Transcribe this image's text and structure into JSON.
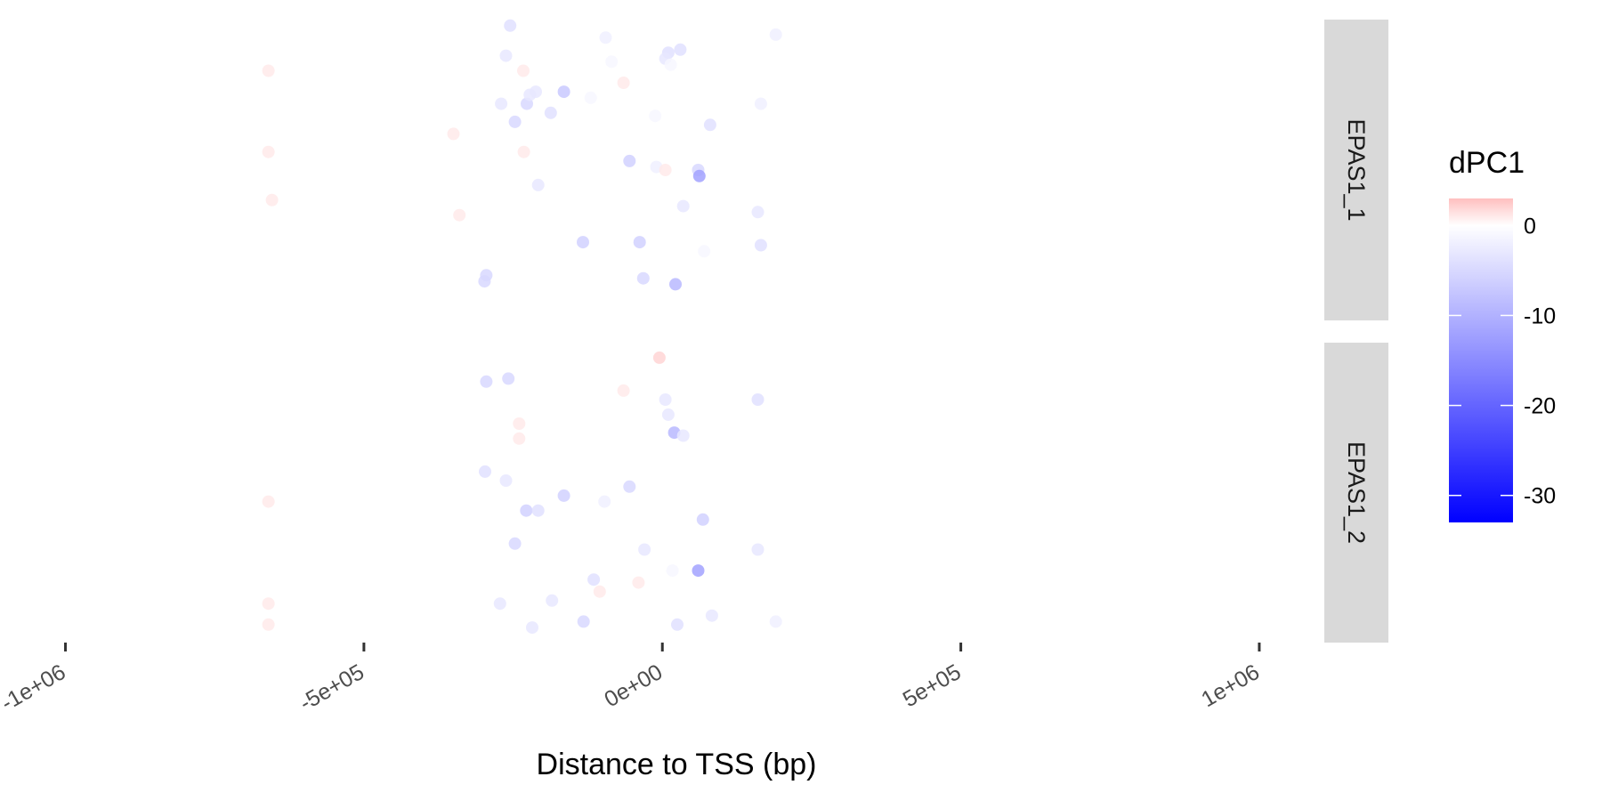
{
  "chart_data": {
    "type": "scatter",
    "xlabel": "Distance to TSS (bp)",
    "ylabel": "",
    "xlim": [
      -1050000,
      1100000
    ],
    "xticks": [
      {
        "value": -1000000,
        "label": "-1e+06"
      },
      {
        "value": -500000,
        "label": "-5e+05"
      },
      {
        "value": 0,
        "label": "0e+00"
      },
      {
        "value": 500000,
        "label": "5e+05"
      },
      {
        "value": 1000000,
        "label": "1e+06"
      }
    ],
    "y_axis_shown": false,
    "grid": false,
    "panels": [
      {
        "name": "EPAS1_1",
        "points": [
          {
            "x": -255000,
            "y": 0.98,
            "value": -4
          },
          {
            "x": -660000,
            "y": 0.83,
            "value": 1
          },
          {
            "x": -262000,
            "y": 0.88,
            "value": -3
          },
          {
            "x": -233000,
            "y": 0.83,
            "value": 1
          },
          {
            "x": -85000,
            "y": 0.86,
            "value": -1
          },
          {
            "x": 10000,
            "y": 0.89,
            "value": -4
          },
          {
            "x": 30000,
            "y": 0.9,
            "value": -4
          },
          {
            "x": 5000,
            "y": 0.87,
            "value": -3
          },
          {
            "x": 14000,
            "y": 0.85,
            "value": -1
          },
          {
            "x": 190000,
            "y": 0.95,
            "value": -2
          },
          {
            "x": -95000,
            "y": 0.94,
            "value": -2
          },
          {
            "x": -227000,
            "y": 0.72,
            "value": -5
          },
          {
            "x": -222000,
            "y": 0.75,
            "value": -3
          },
          {
            "x": -212000,
            "y": 0.76,
            "value": -3
          },
          {
            "x": -165000,
            "y": 0.76,
            "value": -7
          },
          {
            "x": -120000,
            "y": 0.74,
            "value": -1
          },
          {
            "x": -65000,
            "y": 0.79,
            "value": 1
          },
          {
            "x": -187000,
            "y": 0.69,
            "value": -4
          },
          {
            "x": -270000,
            "y": 0.72,
            "value": -3
          },
          {
            "x": -247000,
            "y": 0.66,
            "value": -5
          },
          {
            "x": -360000,
            "y": 0.63,
            "value": 0
          },
          {
            "x": -350000,
            "y": 0.62,
            "value": 1
          },
          {
            "x": -12000,
            "y": 0.68,
            "value": -1
          },
          {
            "x": 80000,
            "y": 0.65,
            "value": -4
          },
          {
            "x": 165000,
            "y": 0.72,
            "value": -2
          },
          {
            "x": -660000,
            "y": 0.56,
            "value": 1
          },
          {
            "x": -232000,
            "y": 0.56,
            "value": 1
          },
          {
            "x": -55000,
            "y": 0.53,
            "value": -6
          },
          {
            "x": -105000,
            "y": 0.52,
            "value": 0
          },
          {
            "x": -10000,
            "y": 0.51,
            "value": -2
          },
          {
            "x": 5000,
            "y": 0.5,
            "value": 1
          },
          {
            "x": 60000,
            "y": 0.5,
            "value": -5
          },
          {
            "x": 62000,
            "y": 0.48,
            "value": -12
          },
          {
            "x": -208000,
            "y": 0.45,
            "value": -3
          },
          {
            "x": -230000,
            "y": 0.43,
            "value": 0
          },
          {
            "x": 35000,
            "y": 0.38,
            "value": -3
          },
          {
            "x": 160000,
            "y": 0.36,
            "value": -3
          },
          {
            "x": -340000,
            "y": 0.35,
            "value": 1
          },
          {
            "x": -133000,
            "y": 0.26,
            "value": -6
          },
          {
            "x": -38000,
            "y": 0.26,
            "value": -6
          },
          {
            "x": 70000,
            "y": 0.23,
            "value": -1
          },
          {
            "x": 165000,
            "y": 0.25,
            "value": -4
          },
          {
            "x": -295000,
            "y": 0.15,
            "value": -5
          },
          {
            "x": -298000,
            "y": 0.13,
            "value": -5
          },
          {
            "x": -32000,
            "y": 0.14,
            "value": -5
          },
          {
            "x": 22000,
            "y": 0.12,
            "value": -9
          },
          {
            "x": -654000,
            "y": 0.4,
            "value": 1
          }
        ]
      },
      {
        "name": "EPAS1_2",
        "points": [
          {
            "x": -5000,
            "y": 0.95,
            "value": 2
          },
          {
            "x": -295000,
            "y": 0.87,
            "value": -5
          },
          {
            "x": -258000,
            "y": 0.88,
            "value": -5
          },
          {
            "x": -65000,
            "y": 0.84,
            "value": 1
          },
          {
            "x": 5000,
            "y": 0.81,
            "value": -3
          },
          {
            "x": 160000,
            "y": 0.81,
            "value": -4
          },
          {
            "x": 10000,
            "y": 0.76,
            "value": -3
          },
          {
            "x": -240000,
            "y": 0.73,
            "value": 1
          },
          {
            "x": 20000,
            "y": 0.7,
            "value": -9
          },
          {
            "x": 35000,
            "y": 0.69,
            "value": -3
          },
          {
            "x": -345000,
            "y": 0.66,
            "value": 0
          },
          {
            "x": -240000,
            "y": 0.68,
            "value": 1
          },
          {
            "x": -297000,
            "y": 0.57,
            "value": -4
          },
          {
            "x": -262000,
            "y": 0.54,
            "value": -3
          },
          {
            "x": -55000,
            "y": 0.52,
            "value": -5
          },
          {
            "x": -165000,
            "y": 0.49,
            "value": -6
          },
          {
            "x": -97000,
            "y": 0.47,
            "value": -2
          },
          {
            "x": -660000,
            "y": 0.47,
            "value": 1
          },
          {
            "x": -228000,
            "y": 0.44,
            "value": -6
          },
          {
            "x": -208000,
            "y": 0.44,
            "value": -4
          },
          {
            "x": 68000,
            "y": 0.41,
            "value": -6
          },
          {
            "x": -247000,
            "y": 0.33,
            "value": -5
          },
          {
            "x": -30000,
            "y": 0.31,
            "value": -3
          },
          {
            "x": 160000,
            "y": 0.31,
            "value": -3
          },
          {
            "x": 60000,
            "y": 0.24,
            "value": -12
          },
          {
            "x": 17000,
            "y": 0.24,
            "value": -1
          },
          {
            "x": -115000,
            "y": 0.21,
            "value": -4
          },
          {
            "x": -40000,
            "y": 0.2,
            "value": 1
          },
          {
            "x": -105000,
            "y": 0.17,
            "value": 1
          },
          {
            "x": -660000,
            "y": 0.13,
            "value": 1
          },
          {
            "x": -272000,
            "y": 0.13,
            "value": -3
          },
          {
            "x": -185000,
            "y": 0.14,
            "value": -3
          },
          {
            "x": -132000,
            "y": 0.07,
            "value": -5
          },
          {
            "x": 83000,
            "y": 0.09,
            "value": -3
          },
          {
            "x": 25000,
            "y": 0.06,
            "value": -4
          },
          {
            "x": 190000,
            "y": 0.07,
            "value": -2
          },
          {
            "x": -218000,
            "y": 0.05,
            "value": -3
          },
          {
            "x": -660000,
            "y": 0.06,
            "value": 1
          }
        ]
      }
    ],
    "legend": {
      "title": "dPC1",
      "placement": "right",
      "limits": [
        -33,
        3
      ],
      "breaks": [
        {
          "value": 0,
          "label": "0"
        },
        {
          "value": -10,
          "label": "-10"
        },
        {
          "value": -20,
          "label": "-20"
        },
        {
          "value": -30,
          "label": "-30"
        }
      ],
      "colors": {
        "high": "#FF0000",
        "mid": "#FFFFFF",
        "low": "#0000FF"
      }
    },
    "colors": {
      "strip_background": "#D9D9D9",
      "tick": "#333333",
      "tick_label": "#4D4D4D"
    }
  }
}
